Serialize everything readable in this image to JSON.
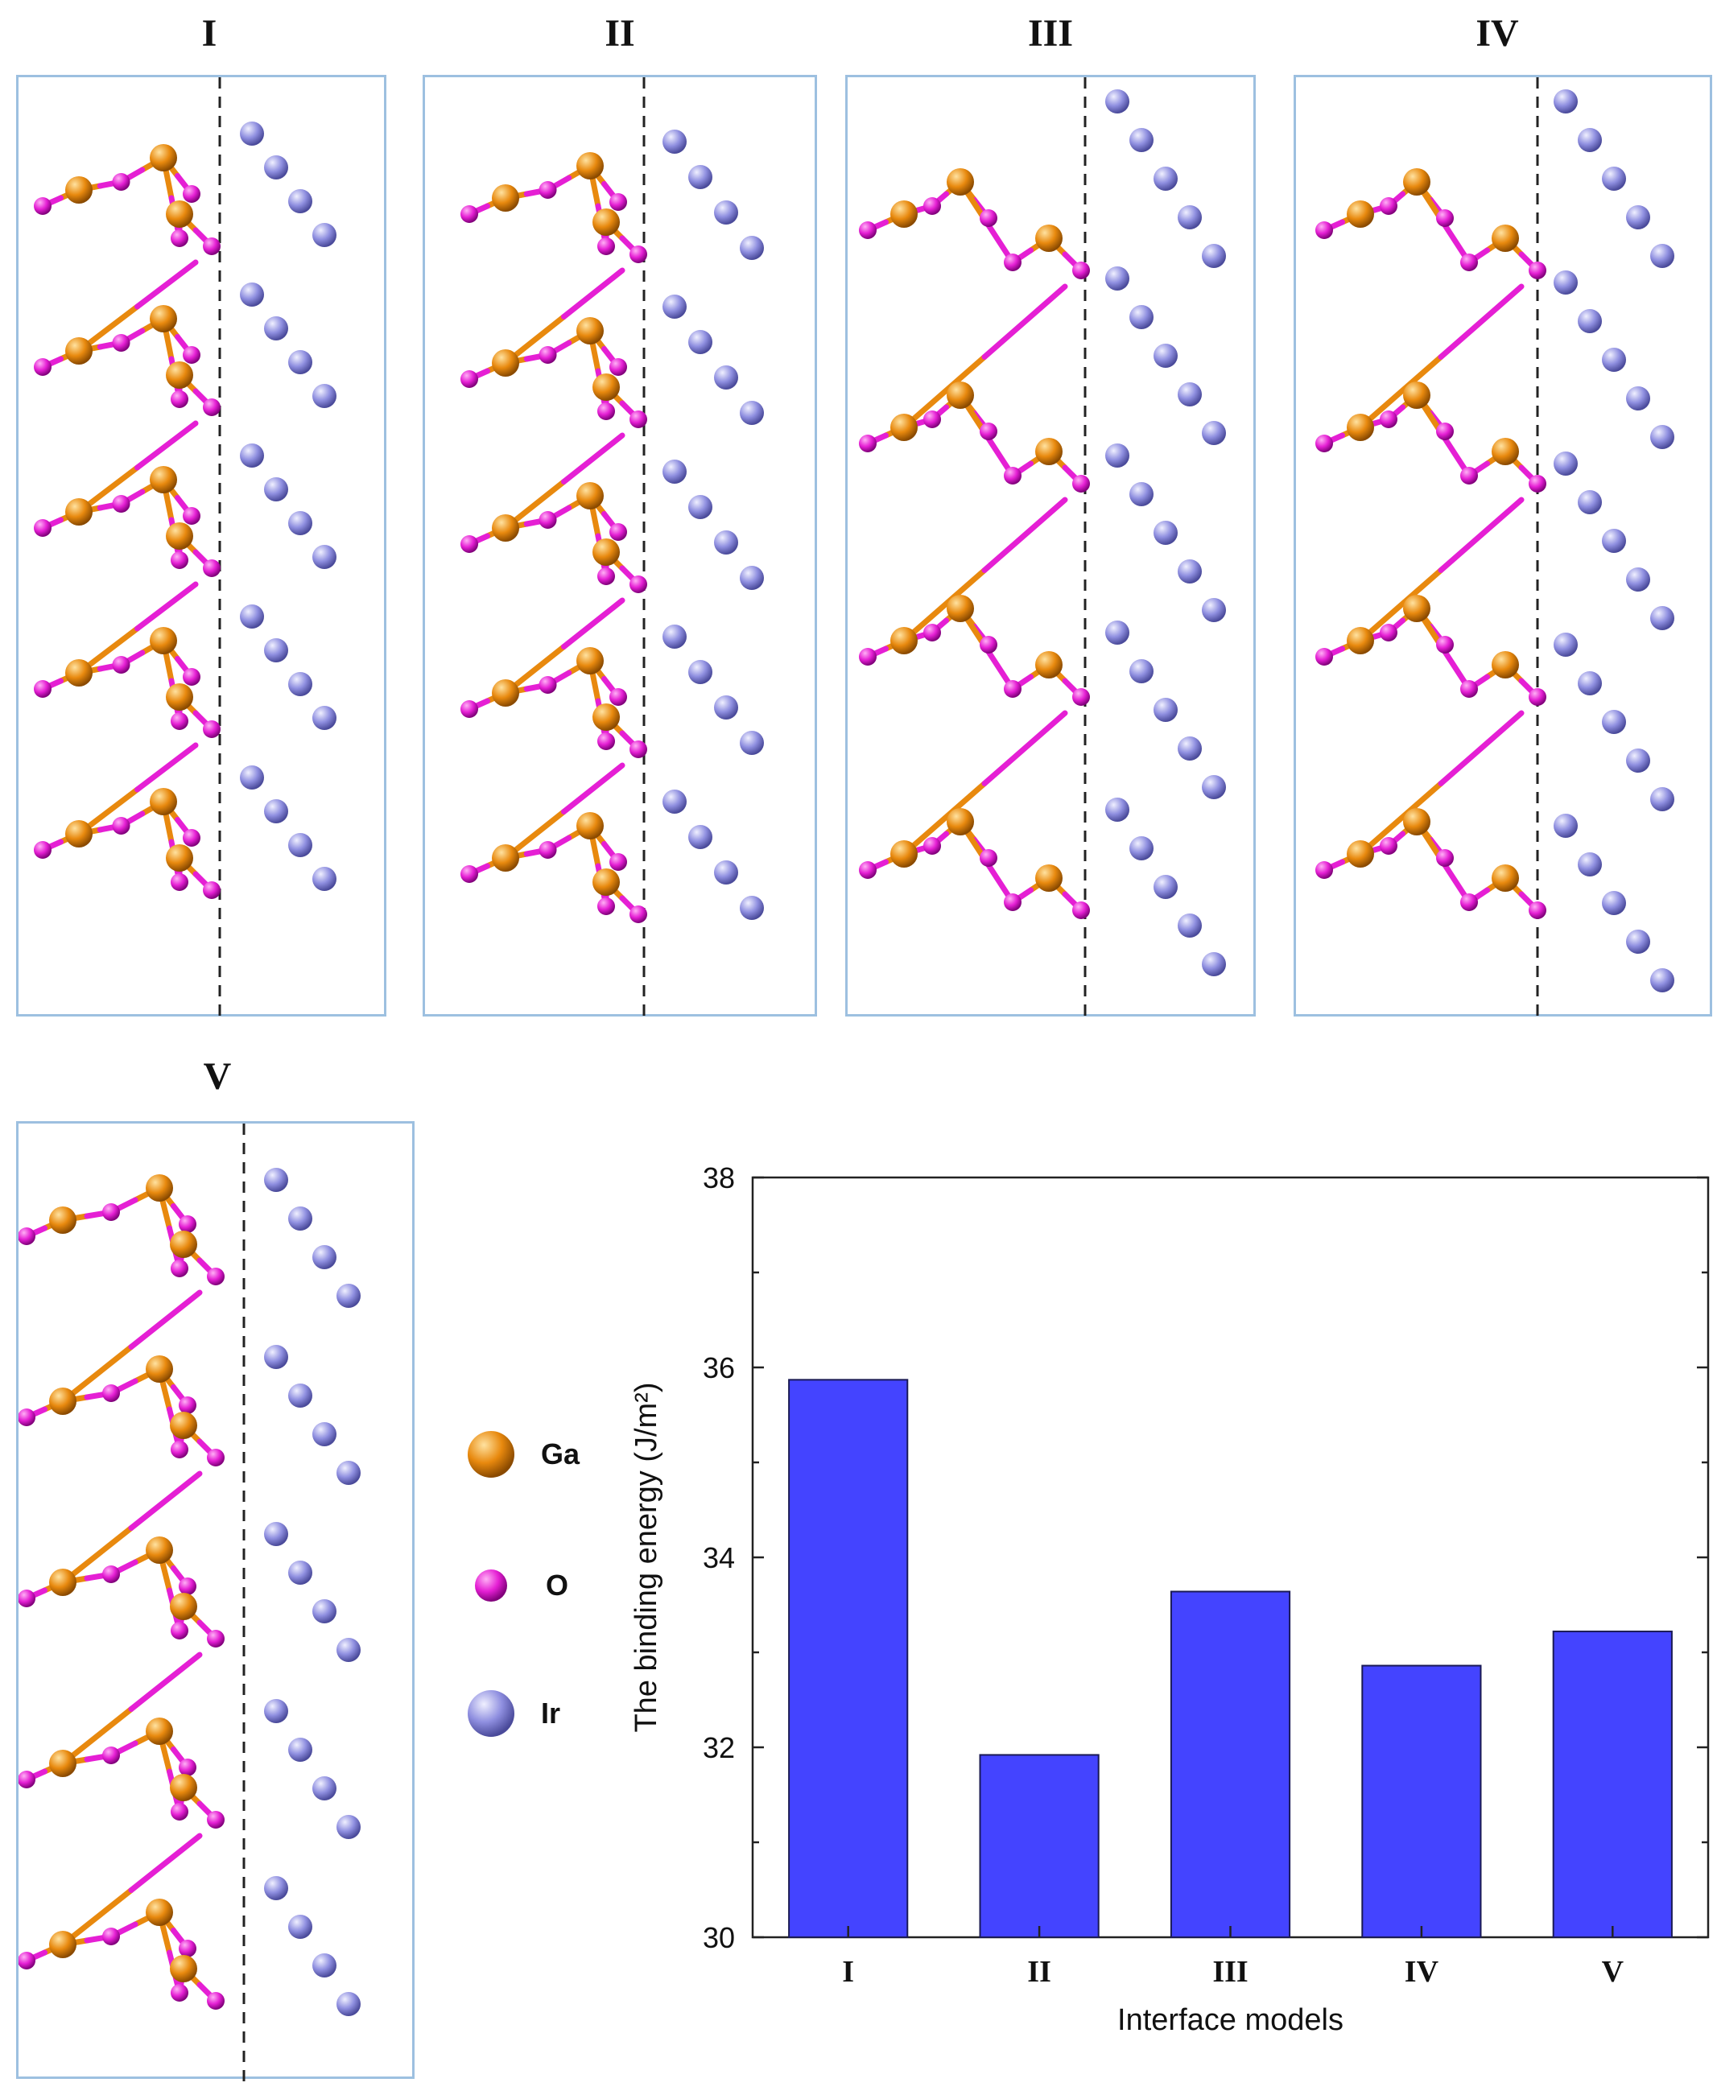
{
  "panels": [
    {
      "id": "I",
      "label": "I"
    },
    {
      "id": "II",
      "label": "II"
    },
    {
      "id": "III",
      "label": "III"
    },
    {
      "id": "IV",
      "label": "IV"
    },
    {
      "id": "V",
      "label": "V"
    }
  ],
  "legend": [
    {
      "label": "Ga",
      "color": "#e8890e"
    },
    {
      "label": "O",
      "color": "#e51fd4"
    },
    {
      "label": "Ir",
      "color": "#8f8fe0"
    }
  ],
  "colors": {
    "ga": "#e8890e",
    "o": "#e51fd4",
    "ir": "#8f8fe0",
    "bar": "#4444ff",
    "panel_border": "#9dc0e0"
  },
  "chart_data": {
    "type": "bar",
    "categories": [
      "I",
      "II",
      "III",
      "IV",
      "V"
    ],
    "values": [
      35.87,
      31.92,
      33.64,
      32.86,
      33.22
    ],
    "title": "",
    "xlabel": "Interface models",
    "ylabel": "The binding energy (J/m²)",
    "ylim": [
      30,
      38
    ],
    "yticks": [
      "30",
      "32",
      "34",
      "36",
      "38"
    ],
    "grid": false
  }
}
